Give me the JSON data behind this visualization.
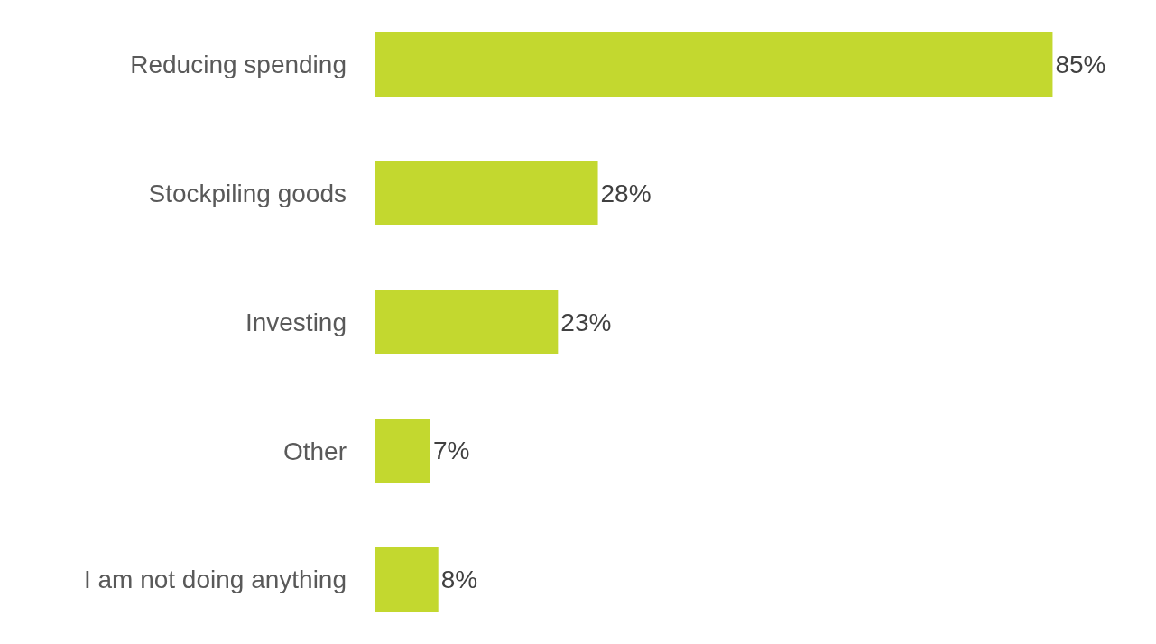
{
  "chart_data": {
    "type": "bar",
    "orientation": "horizontal",
    "categories": [
      "Reducing spending",
      "Stockpiling goods",
      "Investing",
      "Other",
      "I am not doing anything"
    ],
    "values": [
      85,
      28,
      23,
      7,
      8
    ],
    "value_labels": [
      "85%",
      "28%",
      "23%",
      "7%",
      "8%"
    ],
    "color": "#c3d82f",
    "grid": false,
    "tick_labels": "y"
  }
}
